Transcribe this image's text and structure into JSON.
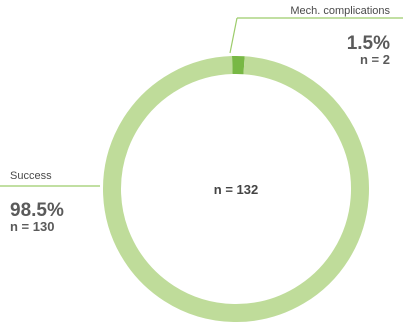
{
  "chart_data": {
    "type": "pie",
    "center_label": "n = 132",
    "slices": [
      {
        "label": "Mech. complications",
        "percent_text": "1.5%",
        "n_text": "n = 2",
        "value": 2,
        "color": "#78b845"
      },
      {
        "label": "Success",
        "percent_text": "98.5%",
        "n_text": "n = 130",
        "value": 130,
        "color": "#bfdc9a"
      }
    ]
  }
}
